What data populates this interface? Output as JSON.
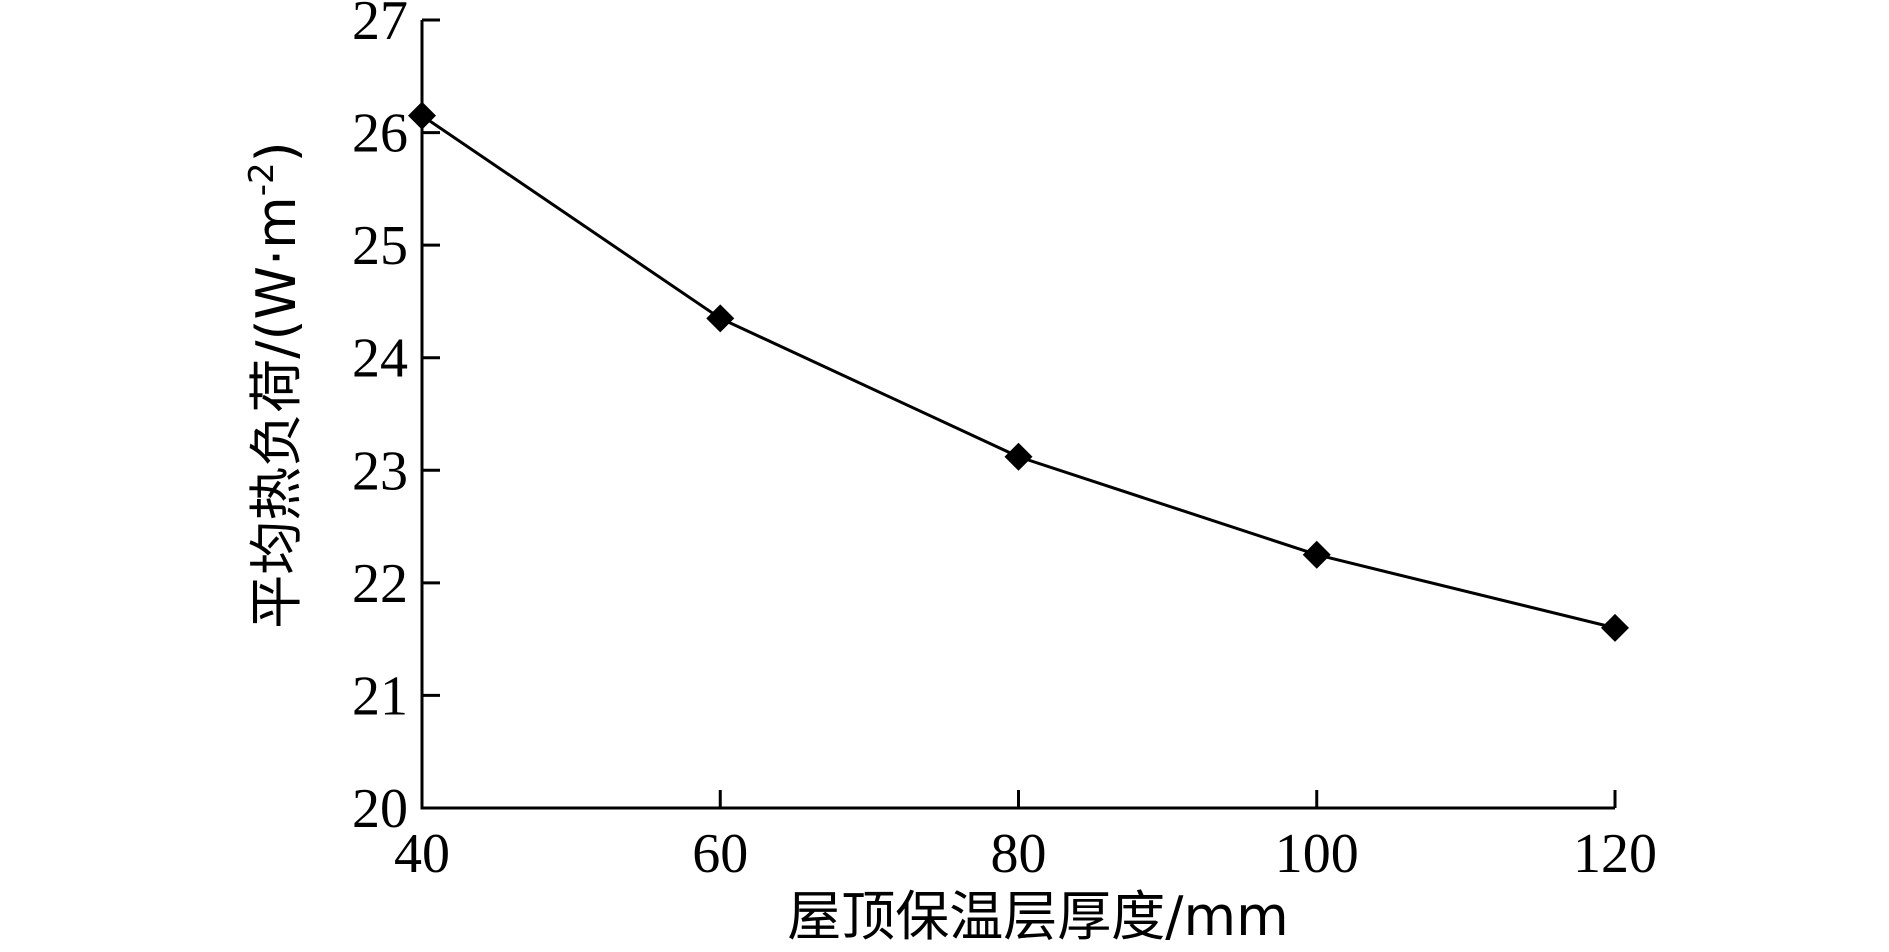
{
  "chart_data": {
    "type": "line",
    "xlabel": "屋顶保温层厚度/mm",
    "ylabel": "平均热负荷/(W·m⁻²)",
    "ylabel_parts": {
      "main": "平均热负荷/(W·m",
      "sup": "-2",
      "close": ")"
    },
    "xlim": [
      40,
      120
    ],
    "ylim": [
      20,
      27
    ],
    "x_ticks": [
      40,
      60,
      80,
      100,
      120
    ],
    "y_ticks": [
      20,
      21,
      22,
      23,
      24,
      25,
      26,
      27
    ],
    "grid": false,
    "marker": "diamond",
    "series": [
      {
        "x": [
          40,
          60,
          80,
          100,
          120
        ],
        "values": [
          26.15,
          24.35,
          23.12,
          22.25,
          21.6
        ]
      }
    ]
  }
}
